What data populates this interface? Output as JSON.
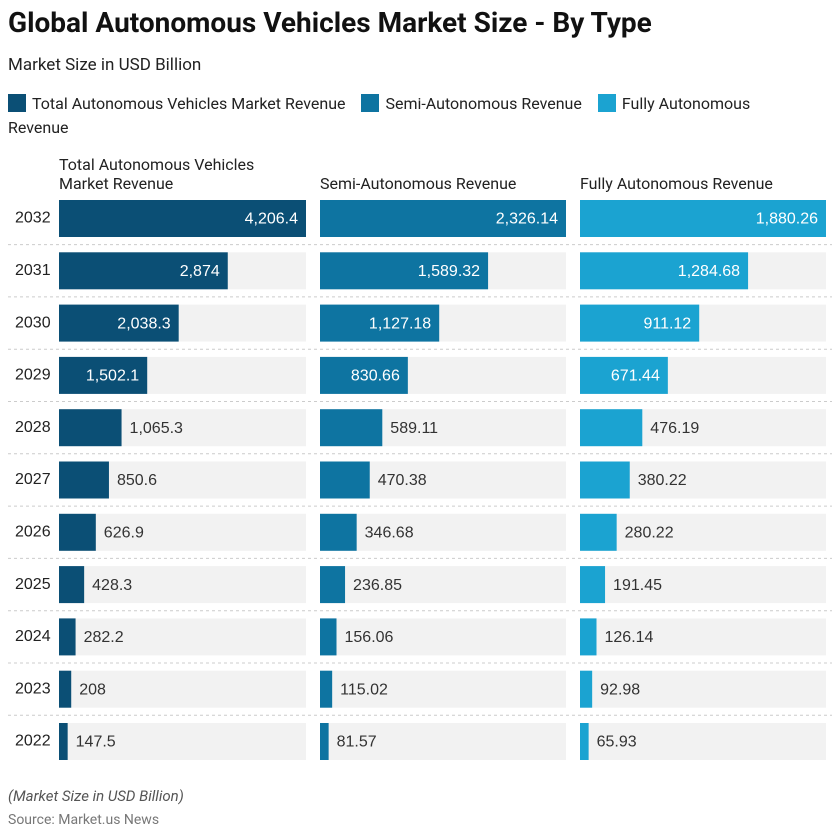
{
  "chart_data": {
    "type": "bar",
    "title": "Global Autonomous Vehicles Market Size - By Type",
    "subtitle": "Market Size in USD Billion",
    "categories": [
      "2032",
      "2031",
      "2030",
      "2029",
      "2028",
      "2027",
      "2026",
      "2025",
      "2024",
      "2023",
      "2022"
    ],
    "series": [
      {
        "name": "Total Autonomous Vehicles Market Revenue",
        "color": "#0b4f75",
        "values": [
          4206.4,
          2874,
          2038.3,
          1502.1,
          1065.3,
          850.6,
          626.9,
          428.3,
          282.2,
          208,
          147.5
        ],
        "value_labels": [
          "4,206.4",
          "2,874",
          "2,038.3",
          "1,502.1",
          "1,065.3",
          "850.6",
          "626.9",
          "428.3",
          "282.2",
          "208",
          "147.5"
        ]
      },
      {
        "name": "Semi-Autonomous Revenue",
        "color": "#0e74a1",
        "values": [
          2326.14,
          1589.32,
          1127.18,
          830.66,
          589.11,
          470.38,
          346.68,
          236.85,
          156.06,
          115.02,
          81.57
        ],
        "value_labels": [
          "2,326.14",
          "1,589.32",
          "1,127.18",
          "830.66",
          "589.11",
          "470.38",
          "346.68",
          "236.85",
          "156.06",
          "115.02",
          "81.57"
        ]
      },
      {
        "name": "Fully Autonomous Revenue",
        "color": "#1ba3d1",
        "values": [
          1880.26,
          1284.68,
          911.12,
          671.44,
          476.19,
          380.22,
          280.22,
          191.45,
          126.14,
          92.98,
          65.93
        ],
        "value_labels": [
          "1,880.26",
          "1,284.68",
          "911.12",
          "671.44",
          "476.19",
          "380.22",
          "280.22",
          "191.45",
          "126.14",
          "92.98",
          "65.93"
        ]
      }
    ],
    "note": "(Market Size in USD Billion)",
    "source": "Source: Market.us News"
  }
}
